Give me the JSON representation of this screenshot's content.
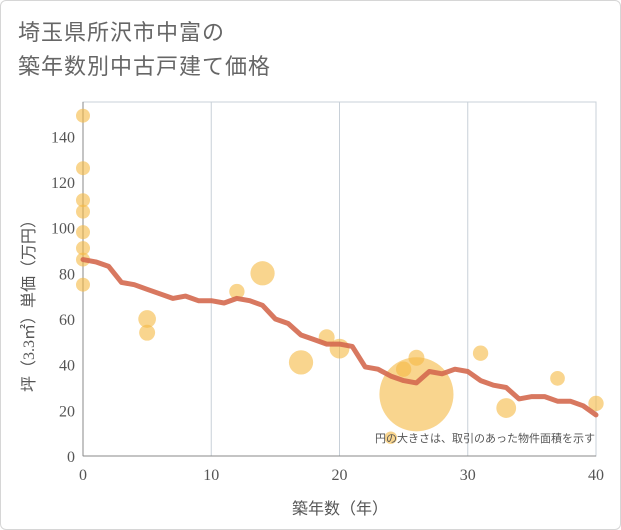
{
  "title_line1": "埼玉県所沢市中富の",
  "title_line2": "築年数別中古戸建て価格",
  "chart_data": {
    "type": "scatter",
    "xlabel": "築年数（年）",
    "ylabel": "坪（3.3㎡）単価（万円）",
    "xlim": [
      0,
      40
    ],
    "ylim": [
      0,
      155
    ],
    "xticks": [
      0,
      10,
      20,
      30,
      40
    ],
    "yticks": [
      0,
      20,
      40,
      60,
      80,
      100,
      120,
      140
    ],
    "note": "円の大きさは、取引のあった物件面積を示す",
    "colors": {
      "bubble": "#f5b942",
      "line": "#d4694f",
      "grid": "#c8d0d8"
    },
    "bubbles": [
      {
        "x": 0,
        "y": 149,
        "s": 1
      },
      {
        "x": 0,
        "y": 126,
        "s": 1
      },
      {
        "x": 0,
        "y": 112,
        "s": 1
      },
      {
        "x": 0,
        "y": 107,
        "s": 1
      },
      {
        "x": 0,
        "y": 98,
        "s": 1
      },
      {
        "x": 0,
        "y": 91,
        "s": 1
      },
      {
        "x": 0,
        "y": 86,
        "s": 1
      },
      {
        "x": 0,
        "y": 75,
        "s": 1
      },
      {
        "x": 5,
        "y": 60,
        "s": 1.6
      },
      {
        "x": 5,
        "y": 54,
        "s": 1.3
      },
      {
        "x": 12,
        "y": 72,
        "s": 1.2
      },
      {
        "x": 14,
        "y": 80,
        "s": 3
      },
      {
        "x": 17,
        "y": 41,
        "s": 3
      },
      {
        "x": 19,
        "y": 52,
        "s": 1.3
      },
      {
        "x": 20,
        "y": 47,
        "s": 2
      },
      {
        "x": 24,
        "y": 8,
        "s": 0.8
      },
      {
        "x": 25,
        "y": 38,
        "s": 1.2
      },
      {
        "x": 26,
        "y": 43,
        "s": 1.3
      },
      {
        "x": 26,
        "y": 27,
        "s": 28
      },
      {
        "x": 31,
        "y": 45,
        "s": 1.2
      },
      {
        "x": 33,
        "y": 21,
        "s": 2
      },
      {
        "x": 37,
        "y": 34,
        "s": 1.1
      },
      {
        "x": 40,
        "y": 23,
        "s": 1.2
      }
    ],
    "line": {
      "x": [
        0,
        1,
        2,
        3,
        4,
        5,
        6,
        7,
        8,
        9,
        10,
        11,
        12,
        13,
        14,
        15,
        16,
        17,
        18,
        19,
        20,
        21,
        22,
        23,
        24,
        25,
        26,
        27,
        28,
        29,
        30,
        31,
        32,
        33,
        34,
        35,
        36,
        37,
        38,
        39,
        40
      ],
      "y": [
        86,
        85,
        83,
        76,
        75,
        73,
        71,
        69,
        70,
        68,
        68,
        67,
        69,
        68,
        66,
        60,
        58,
        53,
        51,
        49,
        49,
        48,
        39,
        38,
        35,
        33,
        32,
        37,
        36,
        38,
        37,
        33,
        31,
        30,
        25,
        26,
        26,
        24,
        24,
        22,
        18
      ]
    }
  }
}
